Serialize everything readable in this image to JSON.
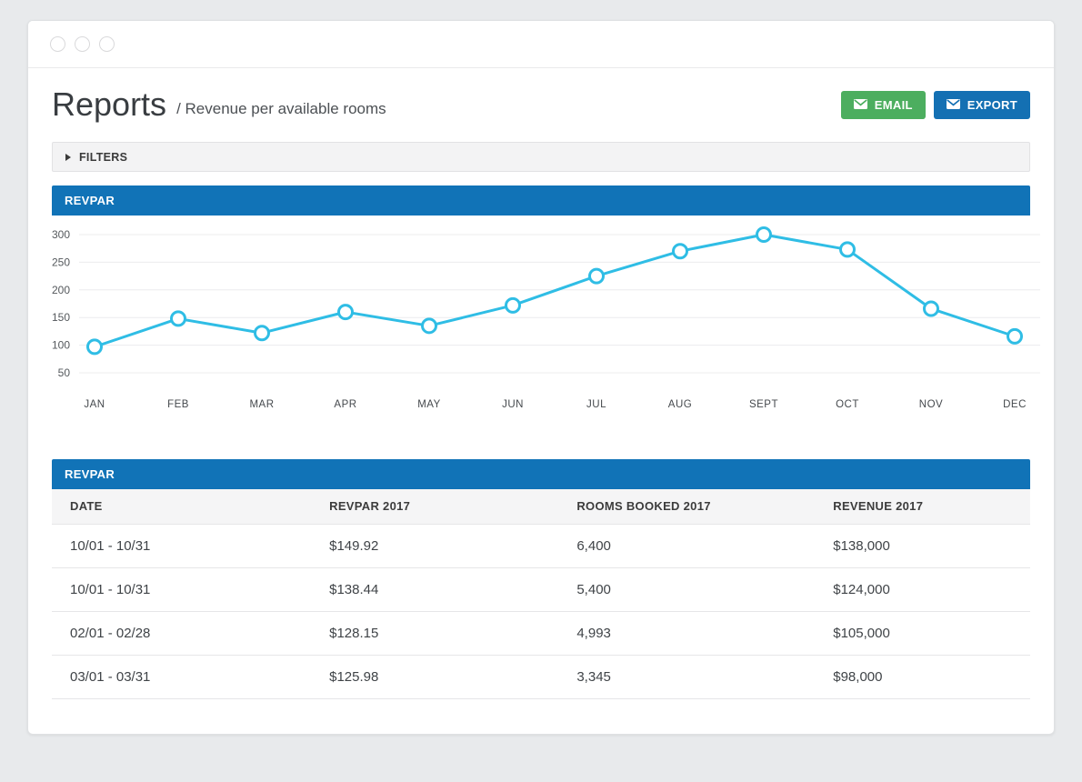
{
  "header": {
    "title": "Reports",
    "separator_subtitle": "/ Revenue per available rooms",
    "email_button": {
      "label": "EMAIL",
      "color": "#4cae5f",
      "icon": "envelope-icon"
    },
    "export_button": {
      "label": "EXPORT",
      "color": "#1470b3",
      "icon": "envelope-icon"
    }
  },
  "filters": {
    "label": "FILTERS",
    "icon": "caret-right-icon"
  },
  "chart_panel": {
    "title": "REVPAR"
  },
  "chart_data": {
    "type": "line",
    "title": "REVPAR",
    "categories": [
      "JAN",
      "FEB",
      "MAR",
      "APR",
      "MAY",
      "JUN",
      "JUL",
      "AUG",
      "SEPT",
      "OCT",
      "NOV",
      "DEC"
    ],
    "values": [
      97,
      148,
      122,
      160,
      135,
      172,
      225,
      270,
      300,
      273,
      166,
      116
    ],
    "yticks": [
      300,
      250,
      200,
      150,
      100,
      50
    ],
    "ylim": [
      50,
      300
    ],
    "grid": true,
    "legend": "none",
    "line_color": "#2fbde5",
    "point_fill": "#ffffff"
  },
  "table_panel": {
    "title": "REVPAR",
    "columns": [
      "DATE",
      "REVPAR 2017",
      "ROOMS BOOKED 2017",
      "REVENUE 2017"
    ],
    "rows": [
      [
        "10/01 - 10/31",
        "$149.92",
        "6,400",
        "$138,000"
      ],
      [
        "10/01 - 10/31",
        "$138.44",
        "5,400",
        "$124,000"
      ],
      [
        "02/01 - 02/28",
        "$128.15",
        "4,993",
        "$105,000"
      ],
      [
        "03/01 - 03/31",
        "$125.98",
        "3,345",
        "$98,000"
      ]
    ]
  },
  "colors": {
    "panel_header_bg": "#1173b7",
    "email_green": "#4cae5f",
    "export_blue": "#1470b3",
    "chart_line": "#2fbde5",
    "page_bg": "#e8eaec"
  }
}
